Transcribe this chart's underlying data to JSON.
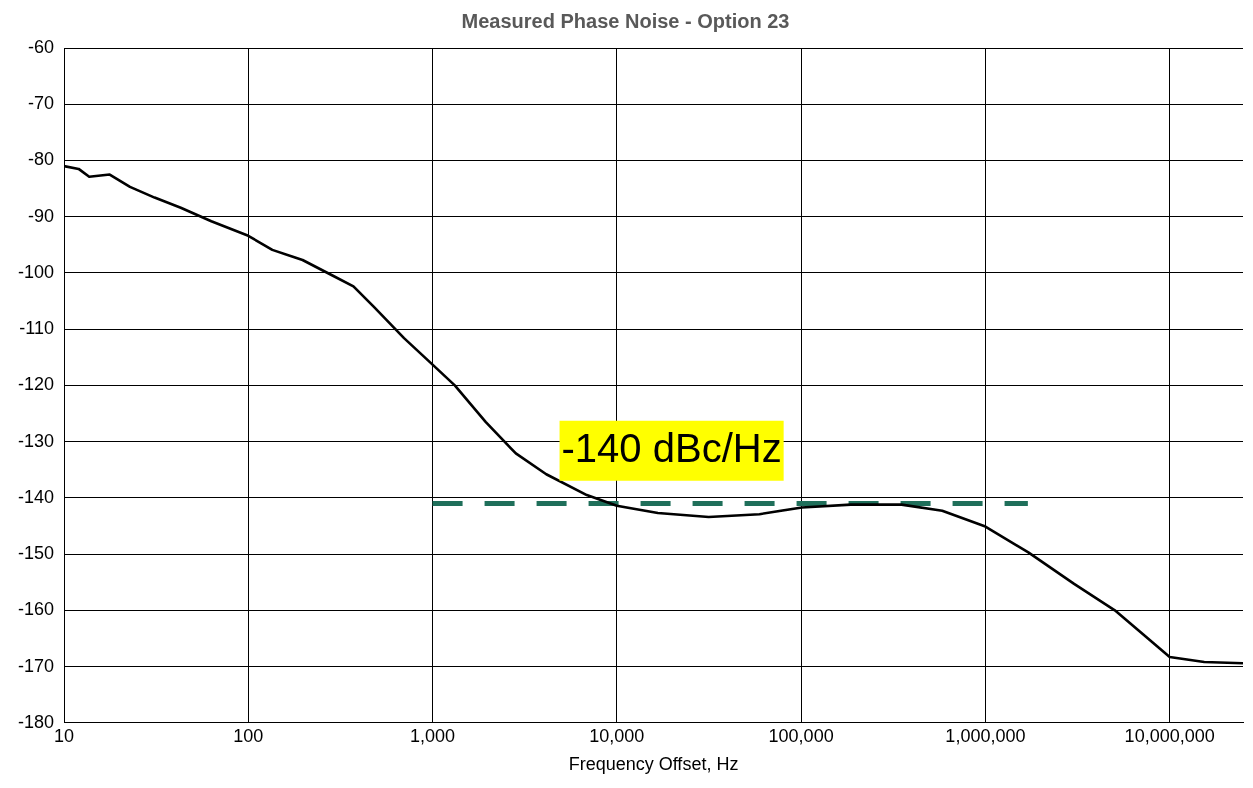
{
  "chart_data": {
    "type": "line",
    "title": "Measured Phase Noise - Option 23",
    "xlabel": "Frequency Offset, Hz",
    "log": "x",
    "grid": true,
    "legend": false,
    "xlim": [
      10,
      25000000
    ],
    "xticks": [
      {
        "value": 10,
        "label": "10"
      },
      {
        "value": 100,
        "label": "100"
      },
      {
        "value": 1000,
        "label": "1,000"
      },
      {
        "value": 10000,
        "label": "10,000"
      },
      {
        "value": 100000,
        "label": "100,000"
      },
      {
        "value": 1000000,
        "label": "1,000,000"
      },
      {
        "value": 10000000,
        "label": "10,000,000"
      }
    ],
    "ylim": [
      -180,
      -60
    ],
    "yticks": [
      -180,
      -170,
      -160,
      -150,
      -140,
      -130,
      -120,
      -110,
      -100,
      -90,
      -80,
      -70,
      -60
    ],
    "series": [
      {
        "color": "#000000",
        "line_style": "solid",
        "x": [
          10,
          12,
          13.7,
          17.7,
          22.8,
          31,
          43,
          63,
          100,
          135,
          197,
          288,
          372,
          479,
          700,
          1000,
          1320,
          1940,
          2830,
          4140,
          6870,
          10000,
          16700,
          31500,
          59400,
          101000,
          186000,
          351000,
          583000,
          1000000,
          1710000,
          3030000,
          5040000,
          7380000,
          10000000,
          15400000,
          25000000
        ],
        "values": [
          -81,
          -81.5,
          -82.9,
          -82.5,
          -84.7,
          -86.6,
          -88.4,
          -90.8,
          -93.4,
          -95.9,
          -97.7,
          -100.5,
          -102.4,
          -106,
          -111.6,
          -116.3,
          -120,
          -126.5,
          -132.1,
          -135.8,
          -139.5,
          -141.4,
          -142.7,
          -143.4,
          -142.9,
          -141.7,
          -141.2,
          -141.2,
          -142.3,
          -145.1,
          -149.7,
          -155.3,
          -160,
          -164.6,
          -168.3,
          -169.2,
          -169.4
        ]
      },
      {
        "color": "#1f6f5a",
        "line_style": "dashed",
        "x": [
          1000,
          1700000
        ],
        "values": [
          -141,
          -141
        ]
      }
    ],
    "annotations": [
      "-140 dBc/Hz"
    ]
  }
}
